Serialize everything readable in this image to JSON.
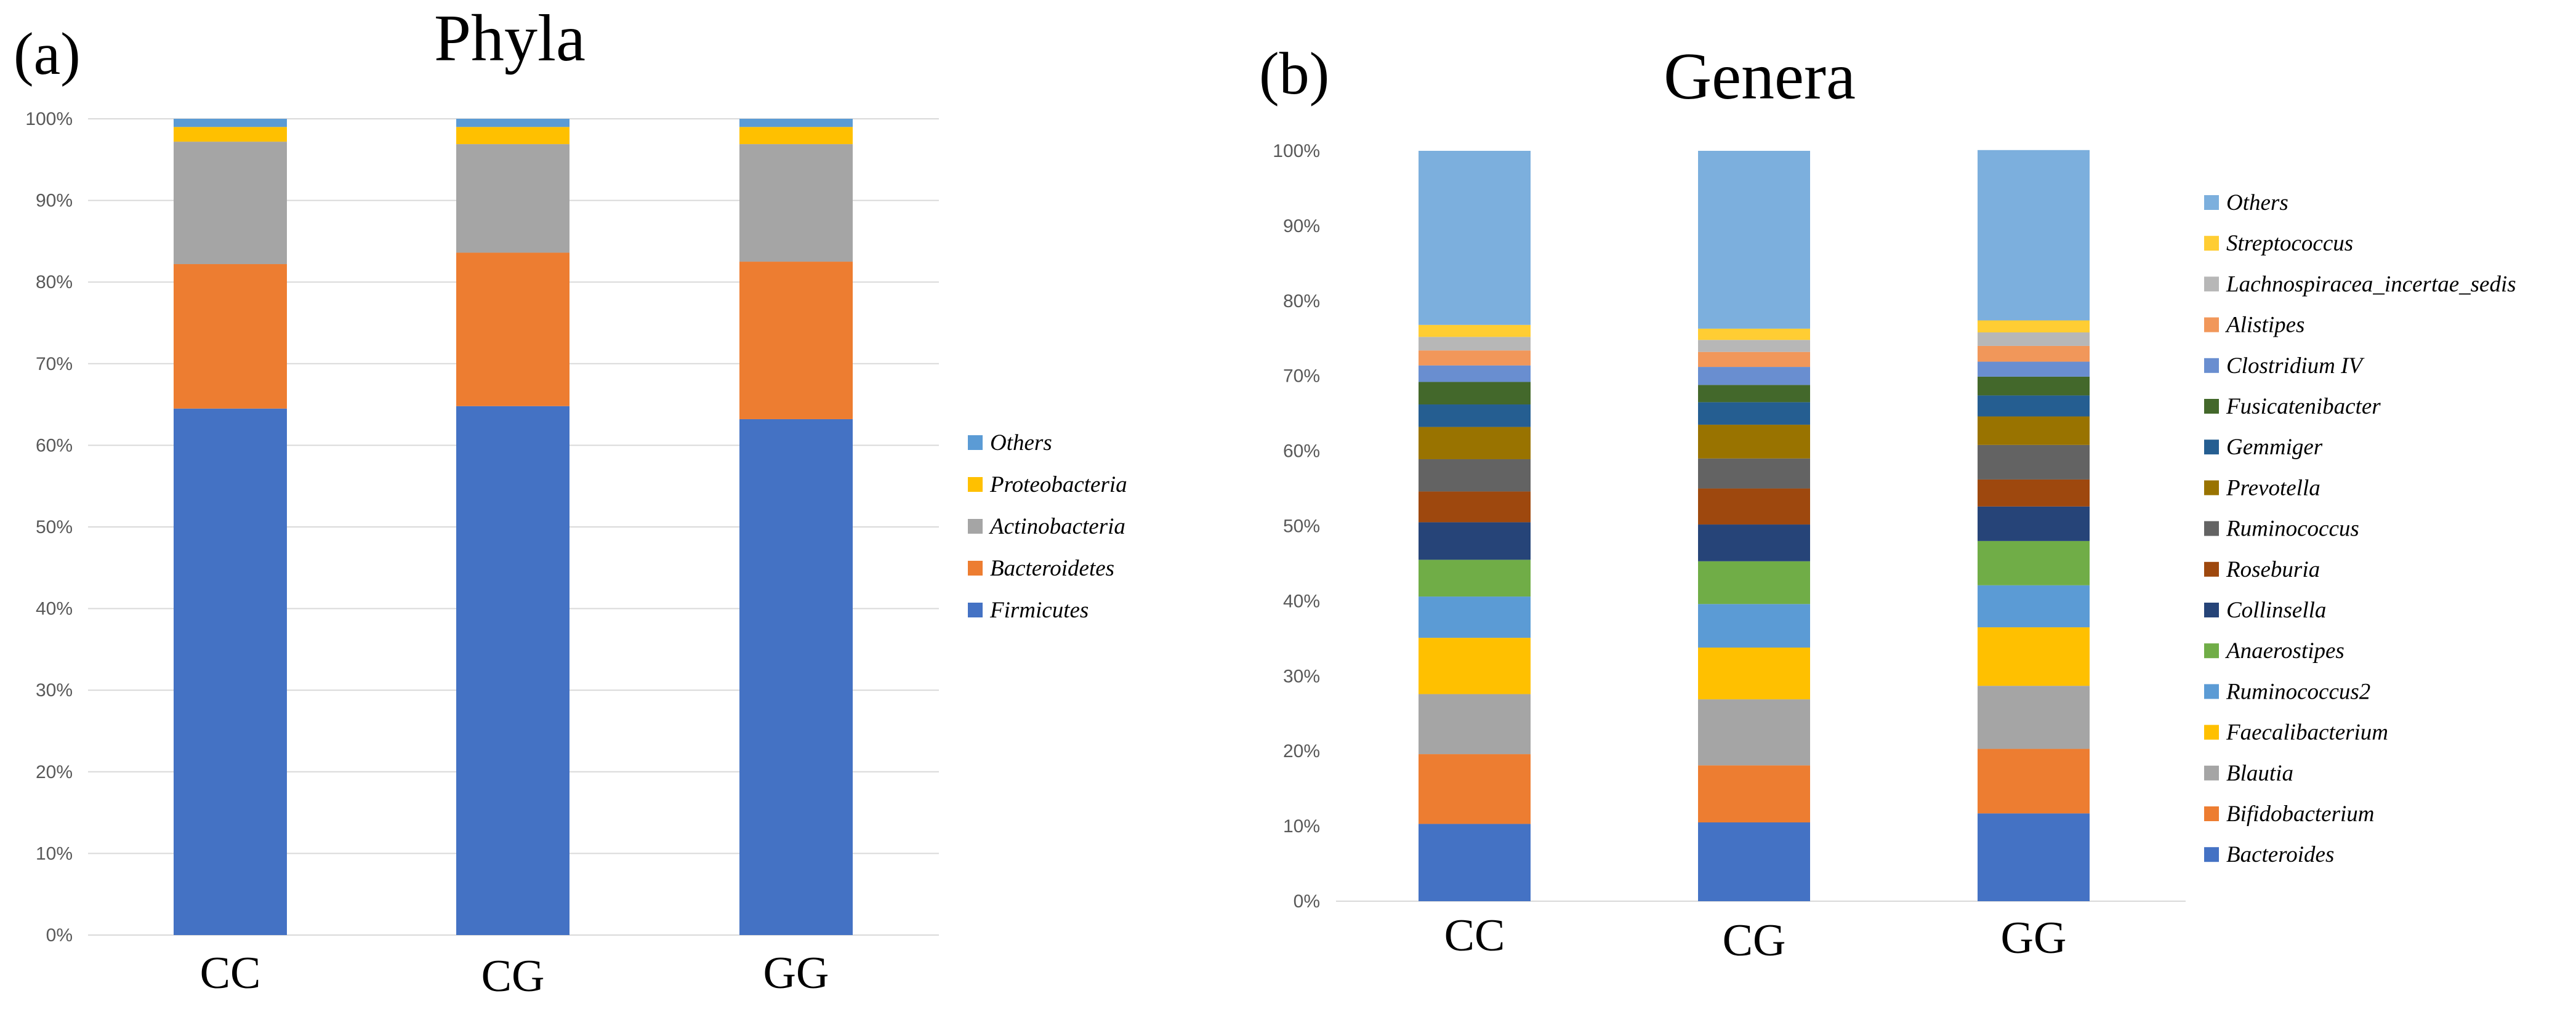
{
  "chart_data": [
    {
      "panel": "(a)",
      "type": "bar",
      "stacked": true,
      "title": "Phyla",
      "xlabel": "",
      "ylabel": "",
      "ylim": [
        0,
        100
      ],
      "y_ticks": [
        "0%",
        "10%",
        "20%",
        "30%",
        "40%",
        "50%",
        "60%",
        "70%",
        "80%",
        "90%",
        "100%"
      ],
      "grid": true,
      "legend_position": "right",
      "categories": [
        "CC",
        "CG",
        "GG"
      ],
      "series": [
        {
          "name": "Firmicutes",
          "color": "#4472C4",
          "values": [
            64.5,
            64.8,
            63.2
          ]
        },
        {
          "name": "Bacteroidetes",
          "color": "#ED7D31",
          "values": [
            17.7,
            18.8,
            19.3
          ]
        },
        {
          "name": "Actinobacteria",
          "color": "#A5A5A5",
          "values": [
            15.0,
            13.3,
            14.4
          ]
        },
        {
          "name": "Proteobacteria",
          "color": "#FFC000",
          "values": [
            1.8,
            2.1,
            2.1
          ]
        },
        {
          "name": "Others",
          "color": "#5B9BD5",
          "values": [
            1.0,
            1.0,
            1.0
          ]
        }
      ]
    },
    {
      "panel": "(b)",
      "type": "bar",
      "stacked": true,
      "title": "Genera",
      "xlabel": "",
      "ylabel": "",
      "ylim": [
        0,
        100
      ],
      "y_ticks": [
        "0%",
        "10%",
        "20%",
        "30%",
        "40%",
        "50%",
        "60%",
        "70%",
        "80%",
        "90%",
        "100%"
      ],
      "grid": false,
      "legend_position": "right",
      "categories": [
        "CC",
        "CG",
        "GG"
      ],
      "series": [
        {
          "name": "Bacteroides",
          "color": "#4472C4",
          "values": [
            10.3,
            10.5,
            11.7
          ]
        },
        {
          "name": "Bifidobacterium",
          "color": "#ED7D31",
          "values": [
            9.3,
            7.6,
            8.6
          ]
        },
        {
          "name": "Blautia",
          "color": "#A5A5A5",
          "values": [
            8.0,
            8.8,
            8.4
          ]
        },
        {
          "name": "Faecalibacterium",
          "color": "#FFC000",
          "values": [
            7.5,
            6.9,
            7.8
          ]
        },
        {
          "name": "Ruminococcus2",
          "color": "#5B9BD5",
          "values": [
            5.5,
            5.8,
            5.6
          ]
        },
        {
          "name": "Anaerostipes",
          "color": "#70AD47",
          "values": [
            4.9,
            5.7,
            5.9
          ]
        },
        {
          "name": "Collinsella",
          "color": "#264478",
          "values": [
            5.0,
            4.9,
            4.6
          ]
        },
        {
          "name": "Roseburia",
          "color": "#9E480E",
          "values": [
            4.1,
            4.8,
            3.6
          ]
        },
        {
          "name": "Ruminococcus",
          "color": "#636363",
          "values": [
            4.3,
            4.0,
            4.6
          ]
        },
        {
          "name": "Prevotella",
          "color": "#997300",
          "values": [
            4.3,
            4.5,
            3.8
          ]
        },
        {
          "name": "Gemmiger",
          "color": "#255E91",
          "values": [
            3.0,
            3.0,
            2.8
          ]
        },
        {
          "name": "Fusicatenibacter",
          "color": "#43682B",
          "values": [
            3.0,
            2.3,
            2.5
          ]
        },
        {
          "name": "Clostridium IV",
          "color": "#698ED0",
          "values": [
            2.2,
            2.4,
            2.0
          ]
        },
        {
          "name": "Alistipes",
          "color": "#F1975A",
          "values": [
            2.0,
            2.0,
            2.1
          ]
        },
        {
          "name": "Lachnospiracea_incertae_sedis",
          "color": "#B7B7B7",
          "values": [
            1.8,
            1.6,
            1.8
          ]
        },
        {
          "name": "Streptococcus",
          "color": "#FFCD33",
          "values": [
            1.6,
            1.5,
            1.6
          ]
        },
        {
          "name": "Others",
          "color": "#7CAFDD",
          "values": [
            23.2,
            23.7,
            22.7
          ]
        }
      ]
    }
  ]
}
